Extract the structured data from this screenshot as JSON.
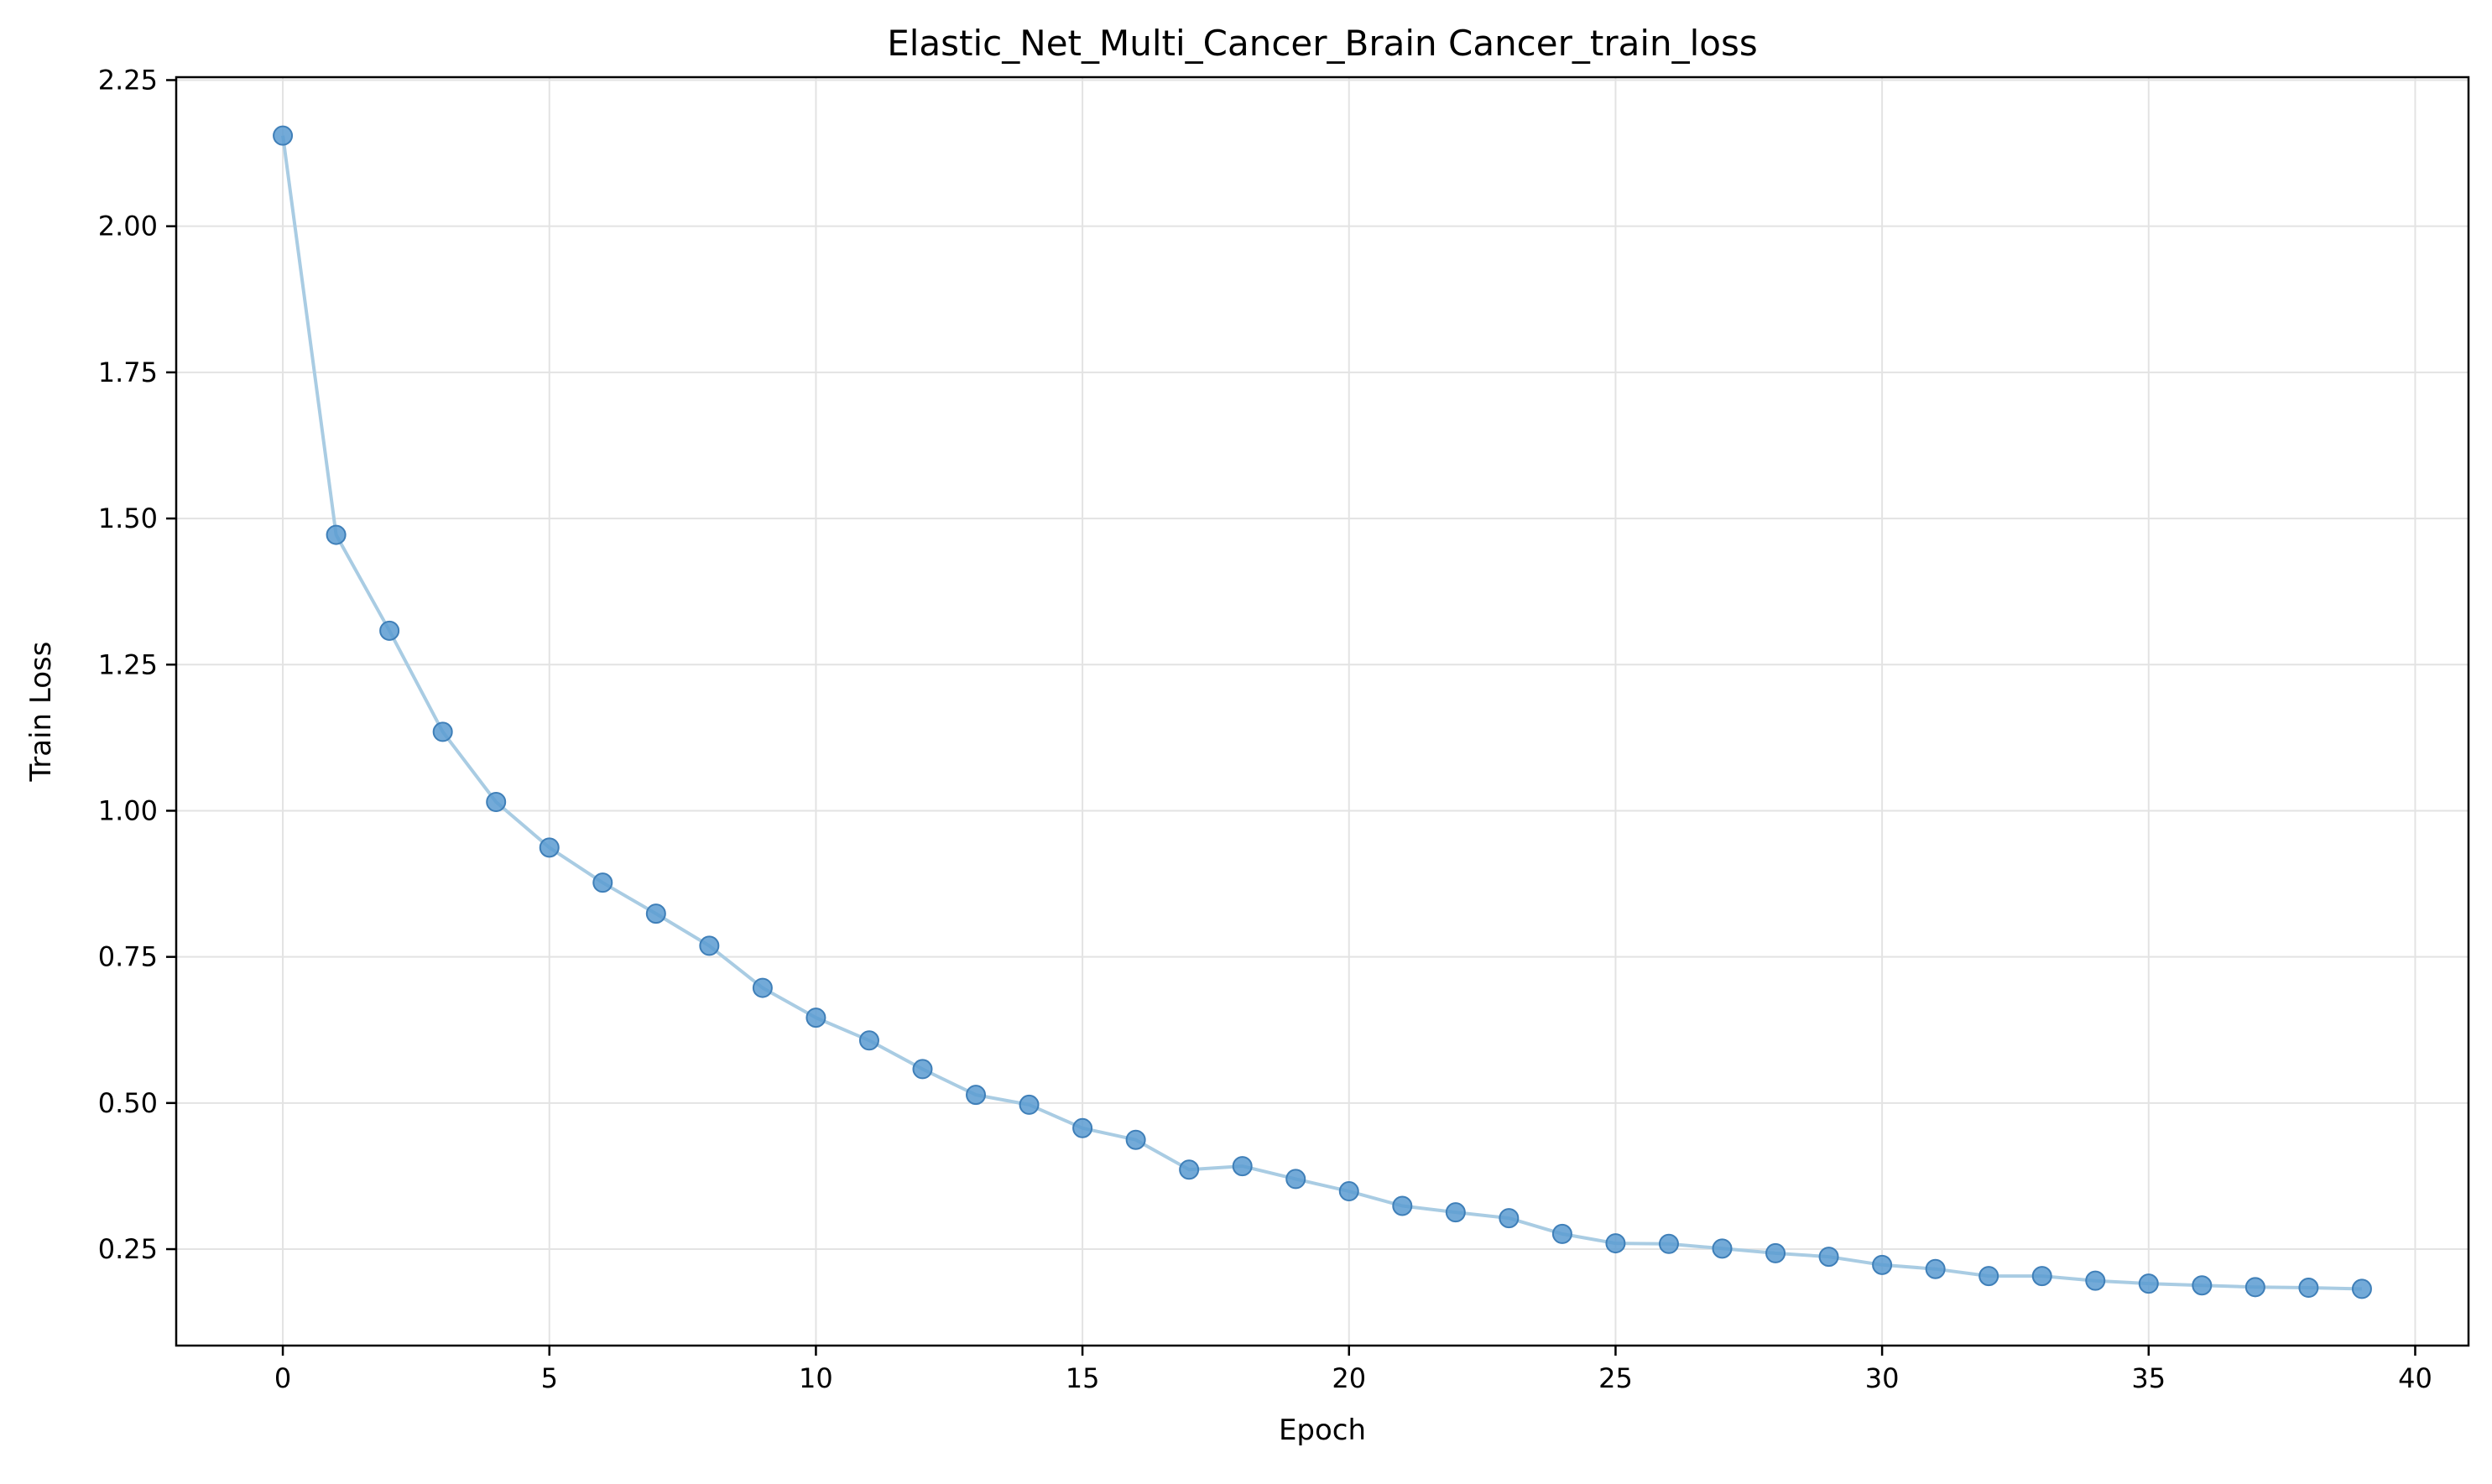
{
  "chart_data": {
    "type": "line",
    "title": "Elastic_Net_Multi_Cancer_Brain Cancer_train_loss",
    "xlabel": "Epoch",
    "ylabel": "Train Loss",
    "xlim": [
      -2,
      41
    ],
    "ylim": [
      0.085,
      2.255
    ],
    "xticks": [
      0,
      5,
      10,
      15,
      20,
      25,
      30,
      35,
      40
    ],
    "xtick_labels": [
      "0",
      "5",
      "10",
      "15",
      "20",
      "25",
      "30",
      "35",
      "40"
    ],
    "yticks": [
      0.25,
      0.5,
      0.75,
      1.0,
      1.25,
      1.5,
      1.75,
      2.0,
      2.25
    ],
    "ytick_labels": [
      "0.25",
      "0.50",
      "0.75",
      "1.00",
      "1.25",
      "1.50",
      "1.75",
      "2.00",
      "2.25"
    ],
    "grid": true,
    "colors": {
      "line": "#a9cce3",
      "marker_fill": "#5b9bd1",
      "marker_edge": "#3f7fb8",
      "grid": "#e3e3e3",
      "axis": "#000000"
    },
    "series": [
      {
        "x": [
          0,
          1,
          2,
          3,
          4,
          5,
          6,
          7,
          8,
          9,
          10,
          11,
          12,
          13,
          14,
          15,
          16,
          17,
          18,
          19,
          20,
          21,
          22,
          23,
          24,
          25,
          26,
          27,
          28,
          29,
          30,
          31,
          32,
          33,
          34,
          35,
          36,
          37,
          38,
          39
        ],
        "values": [
          2.155,
          1.472,
          1.308,
          1.135,
          1.015,
          0.937,
          0.877,
          0.824,
          0.769,
          0.697,
          0.646,
          0.607,
          0.558,
          0.514,
          0.497,
          0.457,
          0.437,
          0.386,
          0.392,
          0.37,
          0.349,
          0.324,
          0.313,
          0.303,
          0.276,
          0.26,
          0.259,
          0.251,
          0.243,
          0.237,
          0.223,
          0.216,
          0.204,
          0.204,
          0.196,
          0.191,
          0.188,
          0.185,
          0.184,
          0.182
        ]
      }
    ]
  }
}
